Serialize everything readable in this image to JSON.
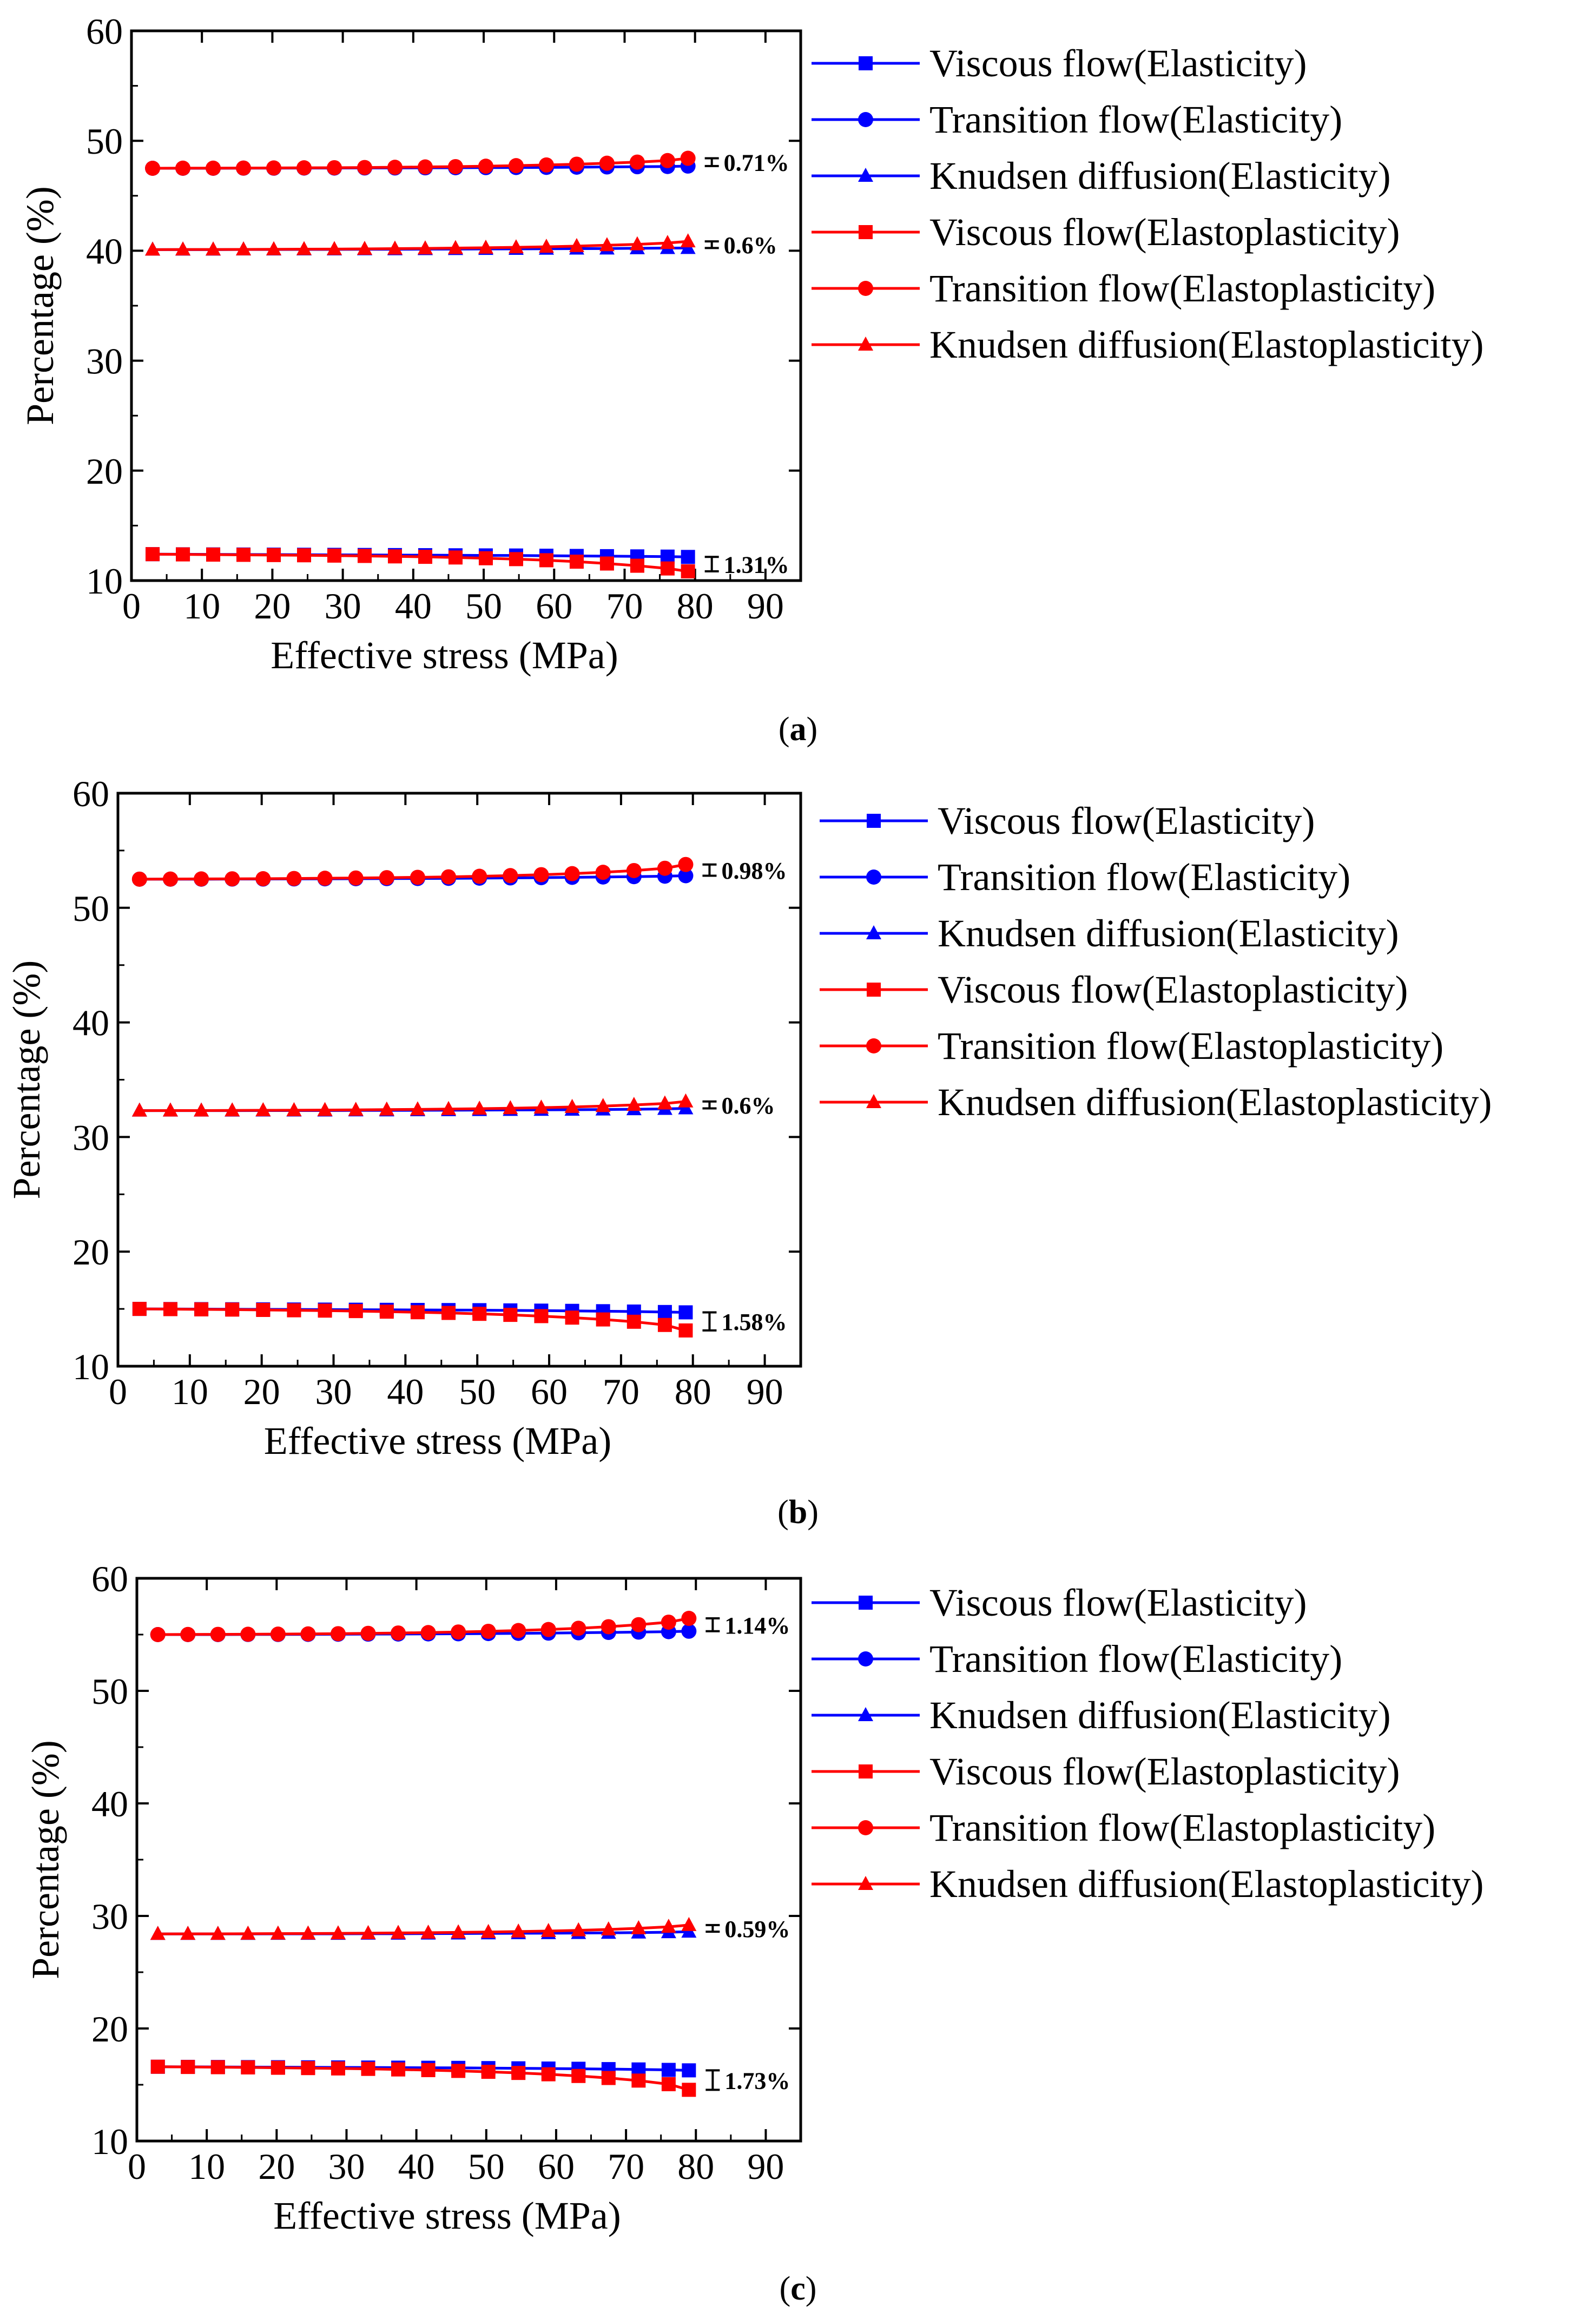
{
  "figure": {
    "xlabel": "Effective stress (MPa)",
    "ylabel": "Percentage (%)"
  },
  "legend": [
    {
      "label": "Viscous flow(Elasticity)",
      "color": "#0000ff",
      "marker": "square"
    },
    {
      "label": "Transition flow(Elasticity)",
      "color": "#0000ff",
      "marker": "circle"
    },
    {
      "label": "Knudsen diffusion(Elasticity)",
      "color": "#0000ff",
      "marker": "triangle"
    },
    {
      "label": "Viscous flow(Elastoplasticity)",
      "color": "#ff0000",
      "marker": "square"
    },
    {
      "label": "Transition flow(Elastoplasticity)",
      "color": "#ff0000",
      "marker": "circle"
    },
    {
      "label": "Knudsen diffusion(Elastoplasticity)",
      "color": "#ff0000",
      "marker": "triangle"
    }
  ],
  "colors": {
    "elasticity": "#0000ff",
    "elastoplasticity": "#ff0000",
    "axis": "#000000"
  },
  "chart_data": [
    {
      "type": "line",
      "panel_label": "a",
      "xlabel": "Effective stress (MPa)",
      "ylabel": "Percentage (%)",
      "xlim": [
        0,
        95
      ],
      "ylim": [
        10,
        60
      ],
      "xticks": [
        0,
        10,
        20,
        30,
        40,
        50,
        60,
        70,
        80,
        90
      ],
      "yticks": [
        10,
        20,
        30,
        40,
        50,
        60
      ],
      "x": [
        3,
        7.3,
        11.6,
        15.9,
        20.2,
        24.5,
        28.8,
        33.1,
        37.4,
        41.7,
        46,
        50.3,
        54.6,
        58.9,
        63.2,
        67.5,
        71.8,
        76.1,
        79
      ],
      "series": [
        {
          "name": "Viscous flow(Elasticity)",
          "color": "#0000ff",
          "marker": "square",
          "values": [
            12.4,
            12.39,
            12.38,
            12.37,
            12.36,
            12.35,
            12.34,
            12.33,
            12.32,
            12.31,
            12.3,
            12.29,
            12.28,
            12.26,
            12.24,
            12.22,
            12.2,
            12.18,
            12.15
          ]
        },
        {
          "name": "Transition flow(Elasticity)",
          "color": "#0000ff",
          "marker": "circle",
          "values": [
            47.5,
            47.5,
            47.5,
            47.51,
            47.51,
            47.52,
            47.52,
            47.53,
            47.53,
            47.54,
            47.55,
            47.56,
            47.57,
            47.58,
            47.6,
            47.62,
            47.64,
            47.66,
            47.7
          ]
        },
        {
          "name": "Knudsen diffusion(Elasticity)",
          "color": "#0000ff",
          "marker": "triangle",
          "values": [
            40.1,
            40.1,
            40.1,
            40.11,
            40.11,
            40.12,
            40.12,
            40.13,
            40.13,
            40.14,
            40.15,
            40.16,
            40.17,
            40.18,
            40.19,
            40.2,
            40.22,
            40.24,
            40.25
          ]
        },
        {
          "name": "Viscous flow(Elastoplasticity)",
          "color": "#ff0000",
          "marker": "square",
          "values": [
            12.4,
            12.38,
            12.36,
            12.34,
            12.32,
            12.3,
            12.27,
            12.24,
            12.2,
            12.16,
            12.1,
            12.03,
            11.95,
            11.85,
            11.72,
            11.55,
            11.35,
            11.1,
            10.84
          ]
        },
        {
          "name": "Transition flow(Elastoplasticity)",
          "color": "#ff0000",
          "marker": "circle",
          "values": [
            47.5,
            47.51,
            47.51,
            47.52,
            47.53,
            47.54,
            47.55,
            47.57,
            47.59,
            47.62,
            47.65,
            47.69,
            47.74,
            47.8,
            47.87,
            47.96,
            48.06,
            48.2,
            48.41
          ]
        },
        {
          "name": "Knudsen diffusion(Elastoplasticity)",
          "color": "#ff0000",
          "marker": "triangle",
          "values": [
            40.1,
            40.11,
            40.11,
            40.12,
            40.13,
            40.14,
            40.15,
            40.17,
            40.19,
            40.21,
            40.24,
            40.27,
            40.31,
            40.36,
            40.42,
            40.5,
            40.58,
            40.7,
            40.85
          ]
        }
      ],
      "annotations": [
        {
          "text": "0.71%",
          "x": 79,
          "y_low": 47.7,
          "y_high": 48.41
        },
        {
          "text": "0.6%",
          "x": 79,
          "y_low": 40.25,
          "y_high": 40.85
        },
        {
          "text": "1.31%",
          "x": 79,
          "y_low": 10.84,
          "y_high": 12.15
        }
      ]
    },
    {
      "type": "line",
      "panel_label": "b",
      "xlabel": "Effective stress (MPa)",
      "ylabel": "Percentage (%)",
      "xlim": [
        0,
        95
      ],
      "ylim": [
        10,
        60
      ],
      "xticks": [
        0,
        10,
        20,
        30,
        40,
        50,
        60,
        70,
        80,
        90
      ],
      "yticks": [
        10,
        20,
        30,
        40,
        50,
        60
      ],
      "x": [
        3,
        7.3,
        11.6,
        15.9,
        20.2,
        24.5,
        28.8,
        33.1,
        37.4,
        41.7,
        46,
        50.3,
        54.6,
        58.9,
        63.2,
        67.5,
        71.8,
        76.1,
        79
      ],
      "series": [
        {
          "name": "Viscous flow(Elasticity)",
          "color": "#0000ff",
          "marker": "square",
          "values": [
            15.0,
            14.99,
            14.98,
            14.97,
            14.96,
            14.95,
            14.94,
            14.93,
            14.92,
            14.91,
            14.9,
            14.89,
            14.87,
            14.85,
            14.83,
            14.8,
            14.77,
            14.73,
            14.7
          ]
        },
        {
          "name": "Transition flow(Elasticity)",
          "color": "#0000ff",
          "marker": "circle",
          "values": [
            52.5,
            52.5,
            52.5,
            52.51,
            52.51,
            52.52,
            52.53,
            52.54,
            52.55,
            52.56,
            52.57,
            52.59,
            52.61,
            52.63,
            52.66,
            52.69,
            52.72,
            52.76,
            52.8
          ]
        },
        {
          "name": "Knudsen diffusion(Elasticity)",
          "color": "#0000ff",
          "marker": "triangle",
          "values": [
            32.3,
            32.3,
            32.3,
            32.3,
            32.31,
            32.31,
            32.31,
            32.32,
            32.32,
            32.33,
            32.34,
            32.35,
            32.36,
            32.37,
            32.38,
            32.4,
            32.42,
            32.45,
            32.5
          ]
        },
        {
          "name": "Viscous flow(Elastoplasticity)",
          "color": "#ff0000",
          "marker": "square",
          "values": [
            15.0,
            14.98,
            14.96,
            14.94,
            14.91,
            14.88,
            14.85,
            14.81,
            14.76,
            14.71,
            14.65,
            14.57,
            14.48,
            14.37,
            14.24,
            14.08,
            13.88,
            13.6,
            13.12
          ]
        },
        {
          "name": "Transition flow(Elastoplasticity)",
          "color": "#ff0000",
          "marker": "circle",
          "values": [
            52.5,
            52.51,
            52.52,
            52.53,
            52.54,
            52.56,
            52.58,
            52.6,
            52.63,
            52.66,
            52.7,
            52.75,
            52.81,
            52.89,
            52.98,
            53.1,
            53.25,
            53.45,
            53.78
          ]
        },
        {
          "name": "Knudsen diffusion(Elastoplasticity)",
          "color": "#ff0000",
          "marker": "triangle",
          "values": [
            32.3,
            32.31,
            32.31,
            32.32,
            32.33,
            32.34,
            32.35,
            32.37,
            32.39,
            32.41,
            32.44,
            32.47,
            32.51,
            32.56,
            32.62,
            32.7,
            32.8,
            32.92,
            33.1
          ]
        }
      ],
      "annotations": [
        {
          "text": "0.98%",
          "x": 79,
          "y_low": 52.8,
          "y_high": 53.78
        },
        {
          "text": "0.6%",
          "x": 79,
          "y_low": 32.5,
          "y_high": 33.1
        },
        {
          "text": "1.58%",
          "x": 79,
          "y_low": 13.12,
          "y_high": 14.7
        }
      ]
    },
    {
      "type": "line",
      "panel_label": "c",
      "xlabel": "Effective stress (MPa)",
      "ylabel": "Percentage (%)",
      "xlim": [
        0,
        95
      ],
      "ylim": [
        10,
        60
      ],
      "xticks": [
        0,
        10,
        20,
        30,
        40,
        50,
        60,
        70,
        80,
        90
      ],
      "yticks": [
        10,
        20,
        30,
        40,
        50,
        60
      ],
      "x": [
        3,
        7.3,
        11.6,
        15.9,
        20.2,
        24.5,
        28.8,
        33.1,
        37.4,
        41.7,
        46,
        50.3,
        54.6,
        58.9,
        63.2,
        67.5,
        71.8,
        76.1,
        79
      ],
      "series": [
        {
          "name": "Viscous flow(Elasticity)",
          "color": "#0000ff",
          "marker": "square",
          "values": [
            16.6,
            16.59,
            16.58,
            16.57,
            16.56,
            16.55,
            16.54,
            16.53,
            16.52,
            16.51,
            16.5,
            16.48,
            16.46,
            16.44,
            16.42,
            16.39,
            16.36,
            16.32,
            16.28
          ]
        },
        {
          "name": "Transition flow(Elasticity)",
          "color": "#0000ff",
          "marker": "circle",
          "values": [
            55.0,
            55.0,
            55.0,
            55.01,
            55.01,
            55.02,
            55.03,
            55.04,
            55.05,
            55.06,
            55.07,
            55.09,
            55.11,
            55.13,
            55.16,
            55.19,
            55.22,
            55.26,
            55.3
          ]
        },
        {
          "name": "Knudsen diffusion(Elasticity)",
          "color": "#0000ff",
          "marker": "triangle",
          "values": [
            28.4,
            28.4,
            28.4,
            28.4,
            28.41,
            28.41,
            28.41,
            28.42,
            28.42,
            28.43,
            28.44,
            28.45,
            28.46,
            28.47,
            28.48,
            28.5,
            28.52,
            28.55,
            28.6
          ]
        },
        {
          "name": "Viscous flow(Elastoplasticity)",
          "color": "#ff0000",
          "marker": "square",
          "values": [
            16.6,
            16.58,
            16.56,
            16.54,
            16.51,
            16.48,
            16.45,
            16.41,
            16.36,
            16.3,
            16.23,
            16.15,
            16.05,
            15.93,
            15.78,
            15.6,
            15.37,
            15.05,
            14.55
          ]
        },
        {
          "name": "Transition flow(Elastoplasticity)",
          "color": "#ff0000",
          "marker": "circle",
          "values": [
            55.0,
            55.01,
            55.02,
            55.03,
            55.04,
            55.06,
            55.08,
            55.11,
            55.14,
            55.18,
            55.23,
            55.29,
            55.36,
            55.45,
            55.56,
            55.7,
            55.88,
            56.1,
            56.44
          ]
        },
        {
          "name": "Knudsen diffusion(Elastoplasticity)",
          "color": "#ff0000",
          "marker": "triangle",
          "values": [
            28.4,
            28.41,
            28.41,
            28.42,
            28.43,
            28.44,
            28.45,
            28.47,
            28.49,
            28.51,
            28.54,
            28.57,
            28.61,
            28.66,
            28.72,
            28.8,
            28.9,
            29.03,
            29.19
          ]
        }
      ],
      "annotations": [
        {
          "text": "1.14%",
          "x": 79,
          "y_low": 55.3,
          "y_high": 56.44
        },
        {
          "text": "0.59%",
          "x": 79,
          "y_low": 28.6,
          "y_high": 29.19
        },
        {
          "text": "1.73%",
          "x": 79,
          "y_low": 14.55,
          "y_high": 16.28
        }
      ]
    }
  ]
}
